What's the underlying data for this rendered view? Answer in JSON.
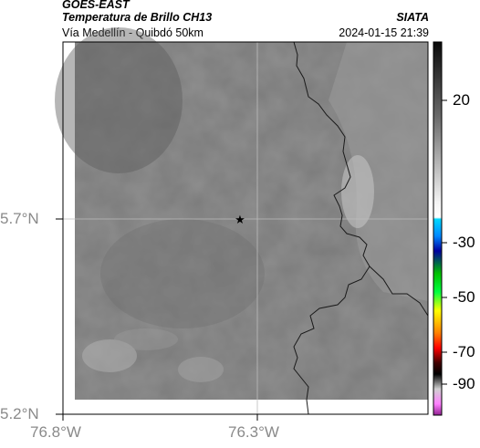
{
  "header": {
    "satellite": "GOES-EAST",
    "product": "Temperatura de Brillo CH13",
    "region": "Vía Medellín - Quibdó 50km",
    "organization": "SIATA",
    "datetime": "2024-01-15 21:39"
  },
  "map": {
    "lat_labels": [
      "5.7°N",
      "5.2°N"
    ],
    "lon_labels": [
      "76.8°W",
      "76.3°W"
    ],
    "marker_icon": "star-marker-icon",
    "colors": {
      "frame": "#000000",
      "boundary": "#1a1a1a",
      "gridline": "#bdbdbd",
      "axis_text": "#8a8a8a"
    }
  },
  "colorbar": {
    "ticks": [
      "20",
      "-30",
      "-50",
      "-70",
      "-90"
    ],
    "colors": [
      "#111111",
      "#ffffff",
      "#00c8ff",
      "#0000a0",
      "#00ff00",
      "#ffff00",
      "#ff0000",
      "#000000",
      "#ff80ff"
    ]
  }
}
